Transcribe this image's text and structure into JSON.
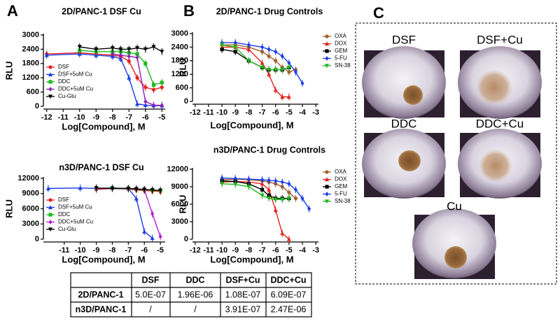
{
  "panels": [
    "A",
    "B",
    "C"
  ],
  "images": [
    "DSF",
    "DSF+Cu",
    "DDC",
    "DDC+Cu",
    "Cu"
  ],
  "table": {
    "columns": [
      "DSF",
      "DDC",
      "DSF+Cu",
      "DDC+Cu"
    ],
    "rows": [
      {
        "label": "2D/PANC-1",
        "cells": [
          "5.0E-07",
          "1.96E-06",
          "1.08E-07",
          "6.09E-07"
        ]
      },
      {
        "label": "n3D/PANC-1",
        "cells": [
          "/",
          "/",
          "3.91E-07",
          "2.47E-06"
        ]
      }
    ]
  },
  "chart_data": [
    {
      "type": "line",
      "title": "2D/PANC-1 DSF Cu",
      "xlabel": "Log[Compound], M",
      "ylabel": "RLU",
      "legend": "lower left",
      "x": [
        -12,
        -10,
        -9,
        -8,
        -7.5,
        -7,
        -6.5,
        -6,
        -5.5,
        -5
      ],
      "xlim": [
        -12.2,
        -4.8
      ],
      "xticks": [
        -12,
        -11,
        -10,
        -9,
        -8,
        -7,
        -6,
        -5
      ],
      "ylim": [
        0,
        3000
      ],
      "yticks": [
        0,
        600,
        1200,
        1800,
        2400,
        3000
      ],
      "series": [
        {
          "name": "DSF",
          "color": "#e8211d",
          "values": [
            2200,
            2250,
            2200,
            2150,
            2100,
            1900,
            1200,
            800,
            700,
            800
          ]
        },
        {
          "name": "DSF+5uM Cu",
          "color": "#1a3de8",
          "values": [
            2150,
            2200,
            2150,
            2100,
            2000,
            1200,
            100,
            50,
            30,
            30
          ]
        },
        {
          "name": "DDC",
          "color": "#1fb81f",
          "values": [
            null,
            2350,
            2300,
            2300,
            2300,
            2250,
            2200,
            1800,
            900,
            1000
          ]
        },
        {
          "name": "DDC+5uM Cu",
          "color": "#8a1fb0",
          "values": [
            null,
            null,
            null,
            2200,
            2150,
            2100,
            2050,
            200,
            50,
            40
          ]
        },
        {
          "name": "Cu-Glu",
          "color": "#000000",
          "values": [
            null,
            2500,
            2400,
            2450,
            2400,
            2400,
            2450,
            2400,
            2500,
            2300
          ]
        }
      ]
    },
    {
      "type": "line",
      "title": "n3D/PANC-1 DSF Cu",
      "xlabel": "Log[Compound], M",
      "ylabel": "RLU",
      "legend": "lower left",
      "x": [
        -12,
        -10,
        -9,
        -8,
        -7,
        -6.5,
        -6,
        -5.5,
        -5
      ],
      "xlim": [
        -12.3,
        -4.7
      ],
      "xticks": [
        -11,
        -10,
        -9,
        -8,
        -7,
        -6,
        -5
      ],
      "ylim": [
        0,
        12000
      ],
      "yticks": [
        0,
        3000,
        6000,
        9000,
        12000
      ],
      "series": [
        {
          "name": "DSF",
          "color": "#e8211d",
          "values": [
            null,
            null,
            9800,
            10000,
            9900,
            9700,
            9600,
            9500,
            9400
          ]
        },
        {
          "name": "DSF+5uM Cu",
          "color": "#1a3de8",
          "values": [
            10000,
            10100,
            10000,
            10100,
            10000,
            8000,
            1500,
            200,
            null
          ]
        },
        {
          "name": "DDC",
          "color": "#1fb81f",
          "values": [
            null,
            null,
            10000,
            10100,
            10000,
            9900,
            9800,
            9700,
            9600
          ]
        },
        {
          "name": "DDC+5uM Cu",
          "color": "#b01fd0",
          "values": [
            null,
            null,
            10000,
            10000,
            10000,
            9900,
            9800,
            5000,
            500
          ]
        },
        {
          "name": "Cu-Glu",
          "color": "#000000",
          "values": [
            null,
            null,
            10100,
            10000,
            10000,
            9900,
            9800,
            9700,
            9600
          ]
        }
      ]
    },
    {
      "type": "line",
      "title": "2D/PANC-1 Drug Controls",
      "xlabel": "Log[Compound], M",
      "ylabel": "RLU",
      "legend": "right",
      "x": [
        -10,
        -9,
        -8,
        -7,
        -6.5,
        -6,
        -5.5,
        -5,
        -4.5,
        -4,
        -3.5
      ],
      "xlim": [
        -12.2,
        -2.8
      ],
      "xticks": [
        -12,
        -11,
        -10,
        -9,
        -8,
        -7,
        -6,
        -5,
        -4,
        -3
      ],
      "ylim": [
        0,
        3000
      ],
      "yticks": [
        0,
        600,
        1200,
        1800,
        2400,
        3000
      ],
      "series": [
        {
          "name": "OXA",
          "color": "#a0602d",
          "values": [
            2500,
            2500,
            2400,
            2200,
            2000,
            1800,
            1500,
            1300,
            1400,
            null,
            null
          ]
        },
        {
          "name": "DOX",
          "color": "#e8211d",
          "values": [
            2400,
            2400,
            2300,
            1700,
            1200,
            500,
            200,
            200,
            null,
            null,
            null
          ]
        },
        {
          "name": "GEM",
          "color": "#000000",
          "values": [
            2300,
            2200,
            1800,
            1500,
            1400,
            1400,
            1400,
            1500,
            null,
            null,
            null
          ]
        },
        {
          "name": "5-FU",
          "color": "#1a3de8",
          "values": [
            2600,
            2600,
            2500,
            2400,
            2300,
            2200,
            2000,
            1700,
            1300,
            800,
            null
          ]
        },
        {
          "name": "SN-38",
          "color": "#1fb81f",
          "values": [
            2500,
            2400,
            1800,
            1500,
            1400,
            1400,
            1400,
            1500,
            null,
            null,
            null
          ]
        }
      ]
    },
    {
      "type": "line",
      "title": "n3D/PANC-1 Drug Controls",
      "xlabel": "Log[Compound], M",
      "ylabel": "RLU",
      "legend": "right",
      "x": [
        -10,
        -9,
        -8,
        -7,
        -6.5,
        -6,
        -5.5,
        -5,
        -4.5,
        -4,
        -3.5
      ],
      "xlim": [
        -12.2,
        -2.8
      ],
      "xticks": [
        -12,
        -11,
        -10,
        -9,
        -8,
        -7,
        -6,
        -5,
        -4,
        -3
      ],
      "ylim": [
        0,
        12000
      ],
      "yticks": [
        0,
        3000,
        6000,
        9000,
        12000
      ],
      "series": [
        {
          "name": "OXA",
          "color": "#a0602d",
          "values": [
            10200,
            10300,
            10200,
            10000,
            9800,
            9500,
            9000,
            8000,
            7000,
            null,
            null
          ]
        },
        {
          "name": "DOX",
          "color": "#e8211d",
          "values": [
            9800,
            9900,
            9800,
            9500,
            8500,
            5000,
            1000,
            0,
            null,
            null,
            null
          ]
        },
        {
          "name": "GEM",
          "color": "#000000",
          "values": [
            10000,
            9900,
            9500,
            8500,
            7500,
            7000,
            7000,
            7000,
            null,
            null,
            null
          ]
        },
        {
          "name": "5-FU",
          "color": "#1a3de8",
          "values": [
            10500,
            10400,
            10300,
            10200,
            10100,
            10000,
            9800,
            9500,
            8500,
            7000,
            5200
          ]
        },
        {
          "name": "SN-38",
          "color": "#1fb81f",
          "values": [
            9500,
            9400,
            9000,
            7500,
            7000,
            6800,
            6800,
            7000,
            null,
            null,
            null
          ]
        }
      ]
    }
  ]
}
